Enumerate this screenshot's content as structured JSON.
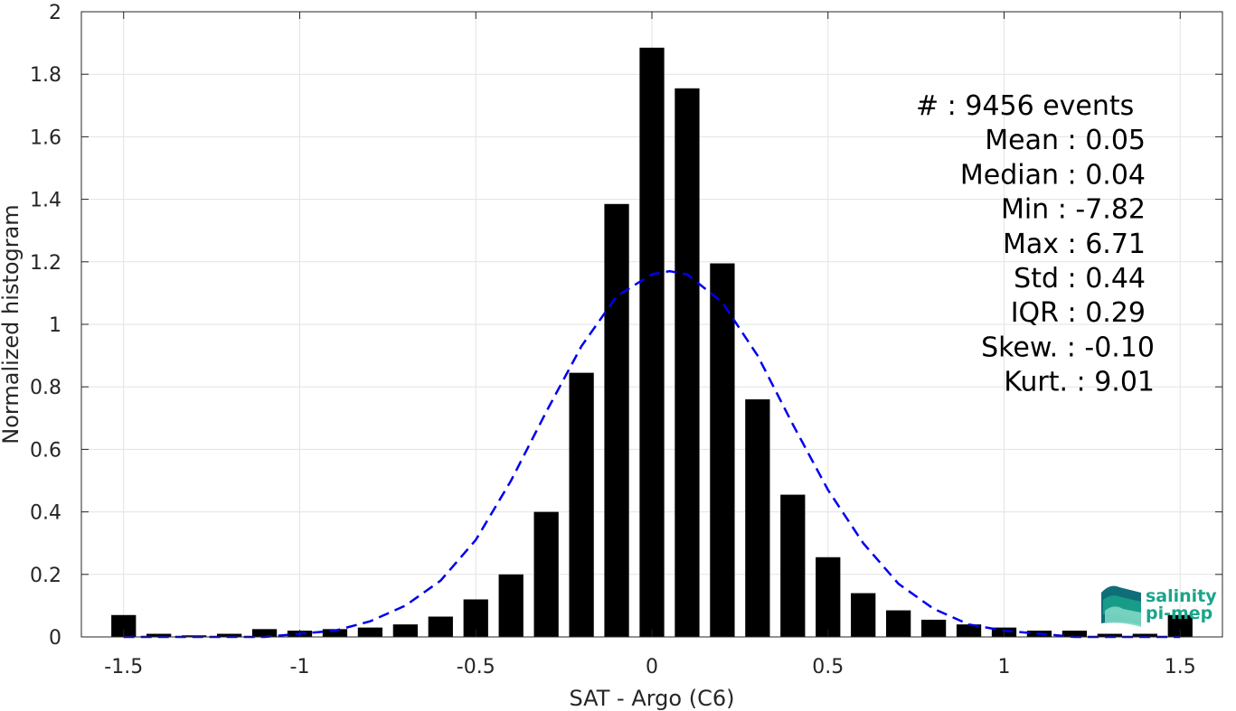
{
  "chart_data": {
    "type": "bar",
    "xlabel": "SAT - Argo (C6)",
    "ylabel": "Normalized histogram",
    "xlim": [
      -1.62,
      1.62
    ],
    "ylim": [
      0,
      2
    ],
    "xticks": [
      -1.5,
      -1,
      -0.5,
      0,
      0.5,
      1,
      1.5
    ],
    "xtick_labels": [
      "-1.5",
      "-1",
      "-0.5",
      "0",
      "0.5",
      "1",
      "1.5"
    ],
    "yticks": [
      0,
      0.2,
      0.4,
      0.6,
      0.8,
      1,
      1.2,
      1.4,
      1.6,
      1.8,
      2
    ],
    "ytick_labels": [
      "0",
      "0.2",
      "0.4",
      "0.6",
      "0.8",
      "1",
      "1.2",
      "1.4",
      "1.6",
      "1.8",
      "2"
    ],
    "grid": true,
    "bar_width": 0.07,
    "bar_color": "#000000",
    "bars": {
      "x": [
        -1.5,
        -1.4,
        -1.3,
        -1.2,
        -1.1,
        -1.0,
        -0.9,
        -0.8,
        -0.7,
        -0.6,
        -0.5,
        -0.4,
        -0.3,
        -0.2,
        -0.1,
        0.0,
        0.1,
        0.2,
        0.3,
        0.4,
        0.5,
        0.6,
        0.7,
        0.8,
        0.9,
        1.0,
        1.1,
        1.2,
        1.3,
        1.4,
        1.5
      ],
      "values": [
        0.07,
        0.01,
        0.005,
        0.01,
        0.025,
        0.02,
        0.025,
        0.03,
        0.04,
        0.065,
        0.12,
        0.2,
        0.4,
        0.845,
        1.385,
        1.885,
        1.755,
        1.195,
        0.76,
        0.455,
        0.255,
        0.14,
        0.085,
        0.055,
        0.04,
        0.03,
        0.02,
        0.02,
        0.01,
        0.01,
        0.07
      ]
    },
    "fit_curve": {
      "style": "dashed",
      "color": "#0000ee",
      "x": [
        -1.5,
        -1.4,
        -1.3,
        -1.2,
        -1.1,
        -1.0,
        -0.9,
        -0.8,
        -0.7,
        -0.6,
        -0.5,
        -0.4,
        -0.3,
        -0.2,
        -0.1,
        0.0,
        0.05,
        0.1,
        0.2,
        0.3,
        0.4,
        0.5,
        0.6,
        0.7,
        0.8,
        0.9,
        1.0,
        1.1,
        1.2,
        1.3,
        1.4,
        1.5
      ],
      "y": [
        0.0,
        0.0,
        0.0,
        0.0,
        0.0,
        0.01,
        0.02,
        0.05,
        0.1,
        0.18,
        0.31,
        0.5,
        0.72,
        0.93,
        1.09,
        1.16,
        1.17,
        1.16,
        1.07,
        0.9,
        0.68,
        0.47,
        0.3,
        0.17,
        0.09,
        0.04,
        0.02,
        0.01,
        0.0,
        0.0,
        0.0,
        0.0
      ]
    }
  },
  "stats": [
    {
      "label": "#  ",
      "value": "9456 events"
    },
    {
      "label": "Mean",
      "value": "0.05"
    },
    {
      "label": "Median",
      "value": "0.04"
    },
    {
      "label": "Min",
      "value": "-7.82"
    },
    {
      "label": "Max",
      "value": "6.71"
    },
    {
      "label": "Std",
      "value": "0.44"
    },
    {
      "label": "IQR",
      "value": "0.29"
    },
    {
      "label": "Skew.",
      "value": "-0.10"
    },
    {
      "label": "Kurt.",
      "value": "9.01"
    }
  ],
  "logo": {
    "line1": "salinity",
    "line2": "pi-mep",
    "color_main": "#1aa58a",
    "color_dark": "#0f6e78"
  }
}
